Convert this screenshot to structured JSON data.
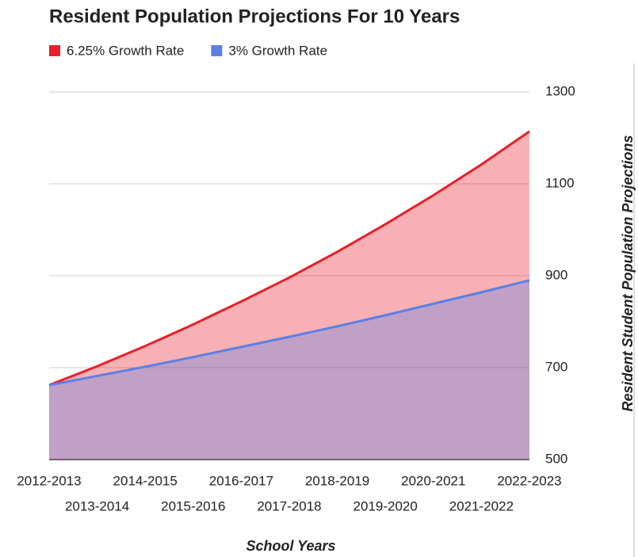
{
  "chart_data": {
    "type": "area",
    "title": "Resident Population Projections For 10 Years",
    "x_label": "School Years",
    "y_label": "Resident Student Population Projections",
    "categories": [
      "2012-2013",
      "2013-2014",
      "2014-2015",
      "2015-2016",
      "2016-2017",
      "2017-2018",
      "2018-2019",
      "2019-2020",
      "2020-2021",
      "2021-2022",
      "2022-2023"
    ],
    "series": [
      {
        "name": "6.25% Growth Rate",
        "color": "#e8202a",
        "values": [
          662,
          703,
          747,
          794,
          844,
          896,
          952,
          1012,
          1075,
          1142,
          1214
        ]
      },
      {
        "name": "3% Growth Rate",
        "color": "#5a80e4",
        "values": [
          662,
          682,
          702,
          723,
          745,
          767,
          790,
          814,
          839,
          864,
          890
        ]
      }
    ],
    "ylim": [
      500,
      1300
    ],
    "yticks": [
      500,
      700,
      900,
      1100,
      1300
    ],
    "y_axis_side": "right",
    "grid": true,
    "legend": "top"
  }
}
